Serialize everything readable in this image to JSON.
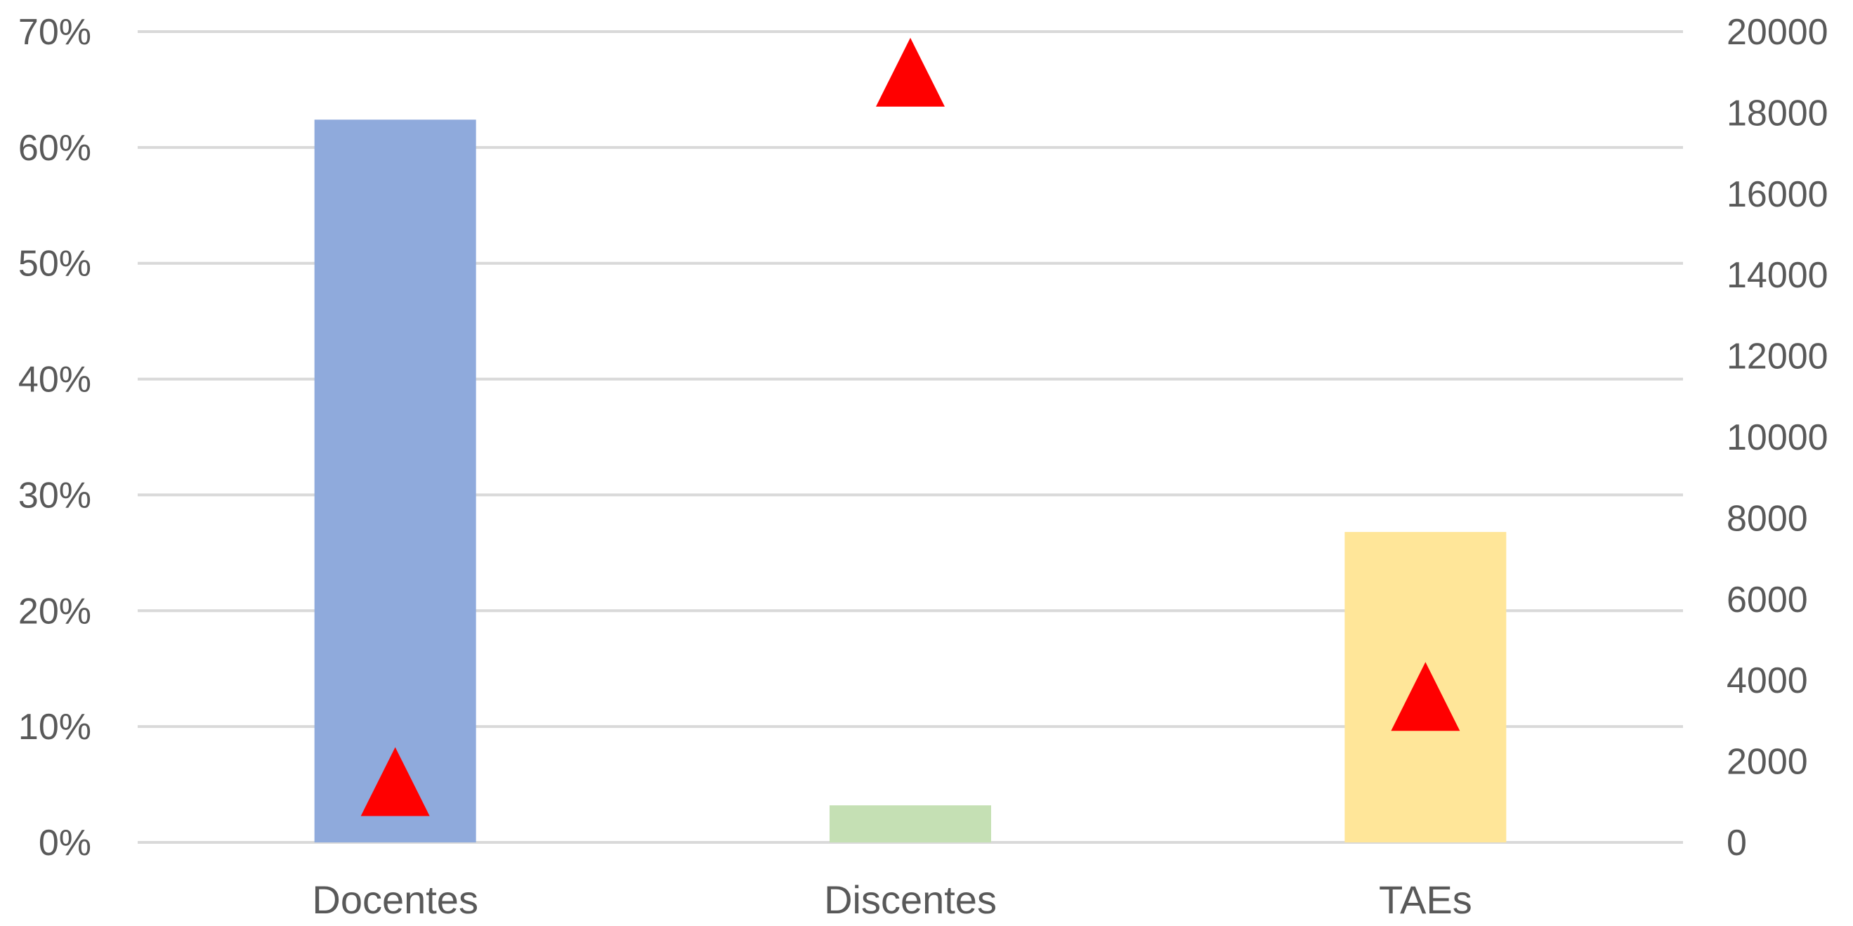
{
  "chart_data": {
    "type": "bar",
    "categories": [
      "Docentes",
      "Discentes",
      "TAEs"
    ],
    "series": [
      {
        "axis": "left",
        "kind": "bar",
        "values": [
          62.4,
          3.2,
          26.8
        ],
        "colors": [
          "#8faadc",
          "#c5e0b4",
          "#ffe699"
        ]
      },
      {
        "axis": "right",
        "kind": "marker",
        "marker": "triangle",
        "color": "#ff0000",
        "values": [
          1500,
          19000,
          3600
        ]
      }
    ],
    "y_left": {
      "ylim": [
        0,
        70
      ],
      "ticks": [
        0,
        10,
        20,
        30,
        40,
        50,
        60,
        70
      ],
      "tick_labels": [
        "0%",
        "10%",
        "20%",
        "30%",
        "40%",
        "50%",
        "60%",
        "70%"
      ]
    },
    "y_right": {
      "ylim": [
        0,
        20000
      ],
      "ticks": [
        0,
        2000,
        4000,
        6000,
        8000,
        10000,
        12000,
        14000,
        16000,
        18000,
        20000
      ],
      "tick_labels": [
        "0",
        "2000",
        "4000",
        "6000",
        "8000",
        "10000",
        "12000",
        "14000",
        "16000",
        "18000",
        "20000"
      ]
    },
    "grid": true,
    "legend": "none",
    "title": "",
    "xlabel": "",
    "ylabel": ""
  }
}
